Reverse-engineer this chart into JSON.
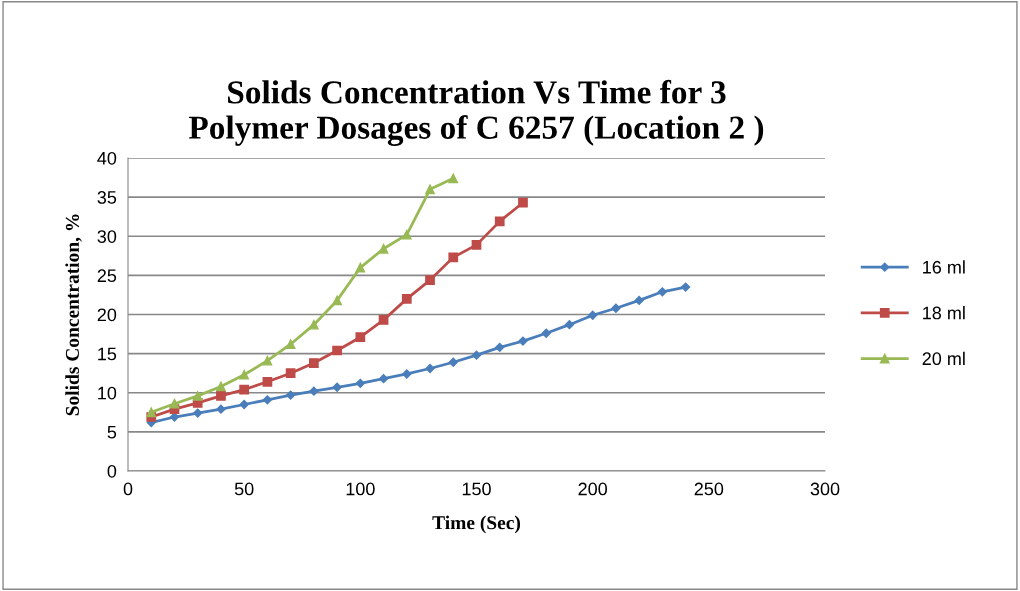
{
  "chart_data": {
    "type": "line",
    "title": "Solids Concentration Vs Time for 3\nPolymer Dosages of C 6257 (Location 2 )",
    "xlabel": "Time (Sec)",
    "ylabel": "Solids Concentration, %",
    "xlim": [
      0,
      300
    ],
    "xticks": [
      0,
      50,
      100,
      150,
      200,
      250,
      300
    ],
    "ylim": [
      0,
      40
    ],
    "yticks": [
      0,
      5,
      10,
      15,
      20,
      25,
      30,
      35,
      40
    ],
    "grid": "y",
    "legend": "right",
    "series": [
      {
        "name": "16 ml",
        "color": "#4a7ebb",
        "marker": "diamond",
        "x": [
          10,
          20,
          30,
          40,
          50,
          60,
          70,
          80,
          90,
          100,
          110,
          120,
          130,
          140,
          150,
          160,
          170,
          180,
          190,
          200,
          210,
          220,
          230,
          240
        ],
        "values": [
          6.2,
          6.9,
          7.4,
          7.9,
          8.5,
          9.1,
          9.7,
          10.2,
          10.7,
          11.2,
          11.8,
          12.4,
          13.1,
          13.9,
          14.8,
          15.8,
          16.6,
          17.6,
          18.7,
          19.9,
          20.8,
          21.8,
          22.9,
          23.5
        ]
      },
      {
        "name": "18 ml",
        "color": "#be4b48",
        "marker": "square",
        "x": [
          10,
          20,
          30,
          40,
          50,
          60,
          70,
          80,
          90,
          100,
          110,
          120,
          130,
          140,
          150,
          160,
          170
        ],
        "values": [
          6.9,
          7.9,
          8.7,
          9.6,
          10.4,
          11.4,
          12.5,
          13.8,
          15.4,
          17.1,
          19.3,
          22.0,
          24.4,
          27.3,
          28.9,
          31.9,
          34.3
        ]
      },
      {
        "name": "20 ml",
        "color": "#98b954",
        "marker": "triangle",
        "x": [
          10,
          20,
          30,
          40,
          50,
          60,
          70,
          80,
          90,
          100,
          110,
          120,
          130,
          140
        ],
        "values": [
          7.5,
          8.6,
          9.6,
          10.8,
          12.3,
          14.1,
          16.2,
          18.7,
          21.8,
          26.0,
          28.4,
          30.2,
          36.0,
          37.4
        ]
      }
    ]
  }
}
